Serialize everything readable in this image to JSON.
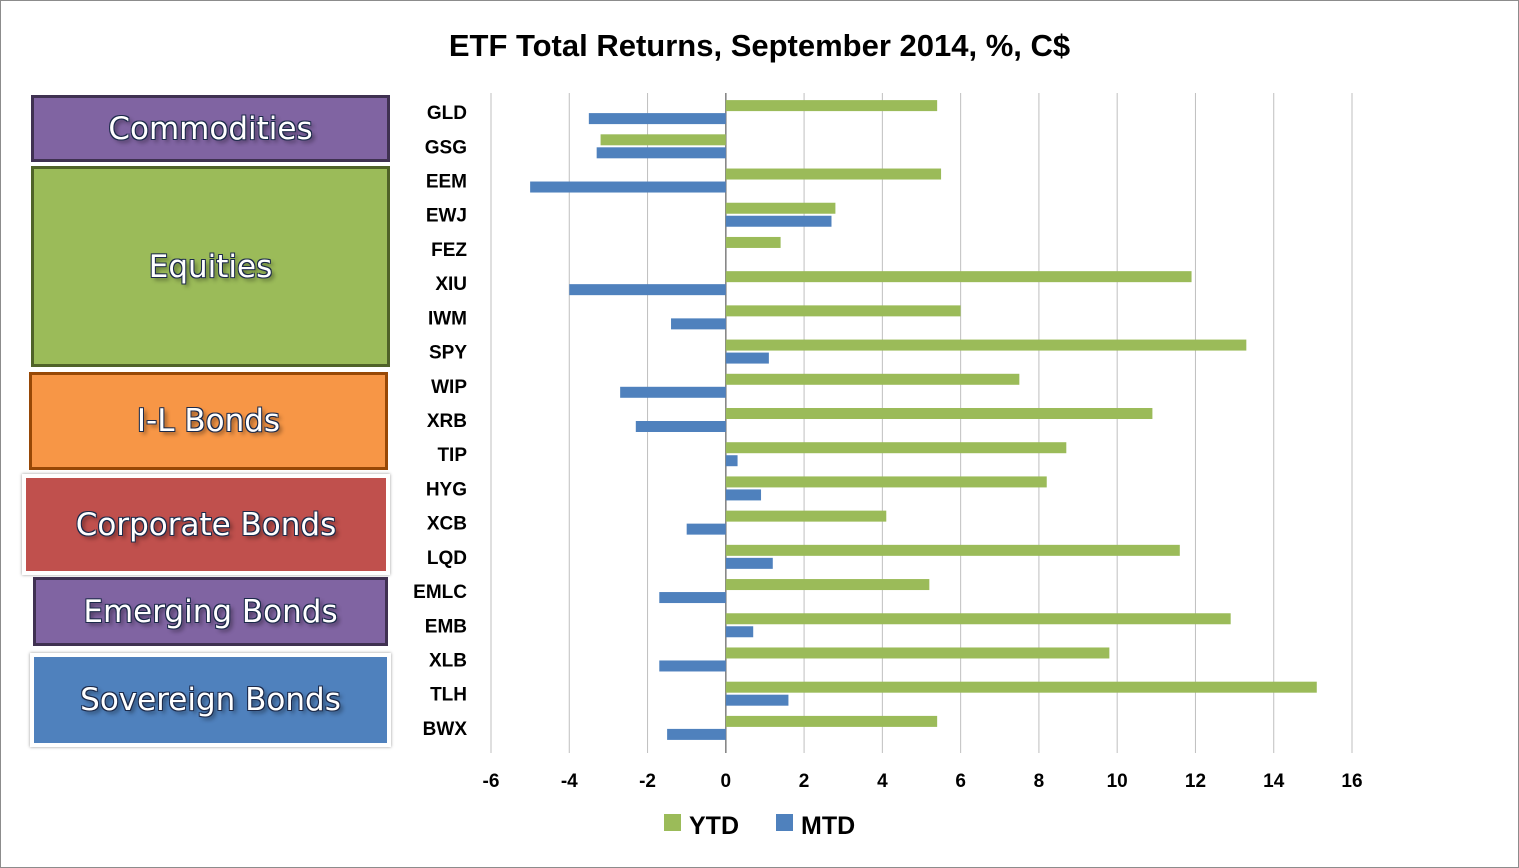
{
  "chart_data": {
    "type": "bar",
    "orientation": "horizontal",
    "title": "ETF Total Returns, September 2014, %, C$",
    "categories": [
      "GLD",
      "GSG",
      "EEM",
      "EWJ",
      "FEZ",
      "XIU",
      "IWM",
      "SPY",
      "WIP",
      "XRB",
      "TIP",
      "HYG",
      "XCB",
      "LQD",
      "EMLC",
      "EMB",
      "XLB",
      "TLH",
      "BWX"
    ],
    "series": [
      {
        "name": "YTD",
        "color": "#9bbb59",
        "values": [
          5.4,
          -3.2,
          5.5,
          2.8,
          1.4,
          11.9,
          6.0,
          13.3,
          7.5,
          10.9,
          8.7,
          8.2,
          4.1,
          11.6,
          5.2,
          12.9,
          9.8,
          15.1,
          5.4
        ]
      },
      {
        "name": "MTD",
        "color": "#4f81bd",
        "values": [
          -3.5,
          -3.3,
          -5.0,
          2.7,
          null,
          -4.0,
          -1.4,
          1.1,
          -2.7,
          -2.3,
          0.3,
          0.9,
          -1.0,
          1.2,
          -1.7,
          0.7,
          -1.7,
          1.6,
          -1.5
        ]
      }
    ],
    "xlim": [
      -6,
      16
    ],
    "x_ticks": [
      -6,
      -4,
      -2,
      0,
      2,
      4,
      6,
      8,
      10,
      12,
      14,
      16
    ],
    "grid": true,
    "legend": "bottom",
    "groups": [
      {
        "label": "Commodities",
        "items": [
          "GLD",
          "GSG"
        ],
        "color": "#8064a2",
        "border": "#3f3151"
      },
      {
        "label": "Equities",
        "items": [
          "EEM",
          "EWJ",
          "FEZ",
          "XIU",
          "IWM",
          "SPY"
        ],
        "color": "#9bbb59",
        "border": "#4f6228"
      },
      {
        "label": "I-L Bonds",
        "items": [
          "WIP",
          "XRB",
          "TIP"
        ],
        "color": "#f79646",
        "border": "#974806"
      },
      {
        "label": "Corporate Bonds",
        "items": [
          "HYG",
          "XCB",
          "LQD"
        ],
        "color": "#c0504d",
        "border": "#ffffff"
      },
      {
        "label": "Emerging Bonds",
        "items": [
          "EMLC",
          "EMB"
        ],
        "color": "#8064a2",
        "border": "#3f3151"
      },
      {
        "label": "Sovereign Bonds",
        "items": [
          "XLB",
          "TLH",
          "BWX"
        ],
        "color": "#4f81bd",
        "border": "#ffffff"
      }
    ]
  }
}
